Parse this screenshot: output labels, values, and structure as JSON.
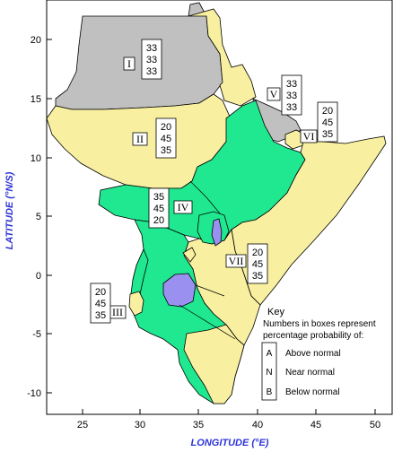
{
  "colors": {
    "above_normal": "#f8f0a0",
    "near_normal": "#20e890",
    "below_normal": "#c0c0c0",
    "lake": "#9a90f0",
    "axis_title": "#2d34d8"
  },
  "axes": {
    "x_title": "LONGITUDE (°E)",
    "y_title": "LATITUDE (°N/S)",
    "x_ticks": [
      "25",
      "30",
      "35",
      "40",
      "45",
      "50"
    ],
    "y_ticks": [
      "20",
      "15",
      "10",
      "5",
      "0",
      "-5",
      "-10"
    ]
  },
  "zones": [
    {
      "id": "I",
      "probs": [
        "33",
        "33",
        "33"
      ]
    },
    {
      "id": "II",
      "probs": [
        "20",
        "45",
        "35"
      ]
    },
    {
      "id": "III",
      "probs": [
        "20",
        "45",
        "35"
      ]
    },
    {
      "id": "IV",
      "probs": [
        "35",
        "45",
        "20"
      ]
    },
    {
      "id": "V",
      "probs": [
        "33",
        "33",
        "33"
      ]
    },
    {
      "id": "VI",
      "probs": [
        "20",
        "45",
        "35"
      ]
    },
    {
      "id": "VII",
      "probs": [
        "20",
        "45",
        "35"
      ]
    }
  ],
  "key": {
    "title": "Key",
    "line1": "Numbers in boxes represent",
    "line2": "percentage probability of:",
    "items": [
      {
        "letter": "A",
        "label": "Above normal"
      },
      {
        "letter": "N",
        "label": "Near normal"
      },
      {
        "letter": "B",
        "label": "Below normal"
      }
    ]
  }
}
